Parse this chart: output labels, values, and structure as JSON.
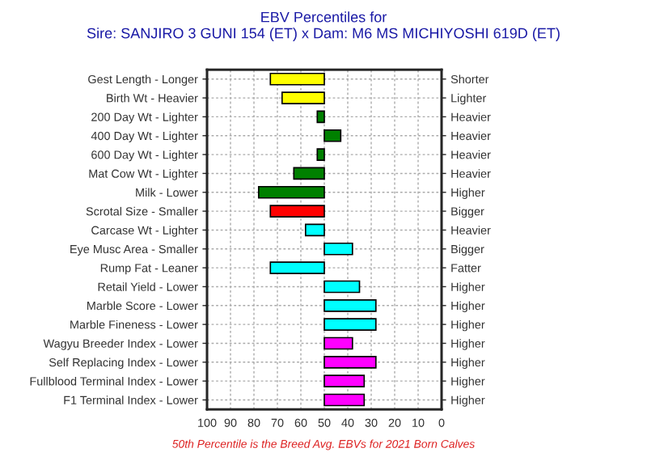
{
  "chart_data": {
    "type": "bar",
    "orientation": "horizontal",
    "title": "EBV Percentiles for",
    "subtitle": "Sire: SANJIRO 3 GUNI 154 (ET) x Dam: M6 MS MICHIYOSHI 619D (ET)",
    "categories": [
      "Gest Length - Longer",
      "Birth Wt - Heavier",
      "200 Day Wt - Lighter",
      "400 Day Wt - Lighter",
      "600 Day Wt - Lighter",
      "Mat Cow Wt - Lighter",
      "Milk - Lower",
      "Scrotal Size - Smaller",
      "Carcase Wt - Lighter",
      "Eye Musc Area - Smaller",
      "Rump Fat - Leaner",
      "Retail Yield - Lower",
      "Marble Score - Lower",
      "Marble Fineness - Lower",
      "Wagyu Breeder Index - Lower",
      "Self Replacing Index - Lower",
      "Fullblood Terminal Index - Lower",
      "F1 Terminal Index - Lower"
    ],
    "y2_categories": [
      "Shorter",
      "Lighter",
      "Heavier",
      "Heavier",
      "Heavier",
      "Heavier",
      "Higher",
      "Bigger",
      "Heavier",
      "Bigger",
      "Fatter",
      "Higher",
      "Higher",
      "Higher",
      "Higher",
      "Higher",
      "Higher",
      "Higher"
    ],
    "base": [
      50,
      50,
      50,
      50,
      50,
      50,
      50,
      50,
      50,
      50,
      50,
      50,
      50,
      50,
      50,
      50,
      50,
      50
    ],
    "values": [
      23,
      18,
      3,
      -7,
      3,
      13,
      28,
      23,
      8,
      -12,
      23,
      -15,
      -22,
      -22,
      -12,
      -22,
      -17,
      -17
    ],
    "colors": [
      "#ffff00",
      "#ffff00",
      "#008000",
      "#008000",
      "#008000",
      "#008000",
      "#008000",
      "#ff0000",
      "#00ffff",
      "#00ffff",
      "#00ffff",
      "#00ffff",
      "#00ffff",
      "#00ffff",
      "#ff00ff",
      "#ff00ff",
      "#ff00ff",
      "#ff00ff"
    ],
    "xlim": [
      100,
      0
    ],
    "xticks": [
      100,
      90,
      80,
      70,
      60,
      50,
      40,
      30,
      20,
      10,
      0
    ],
    "grid": true,
    "annotations": [
      "50th Percentile is the Breed Avg. EBVs for 2021 Born Calves"
    ]
  }
}
